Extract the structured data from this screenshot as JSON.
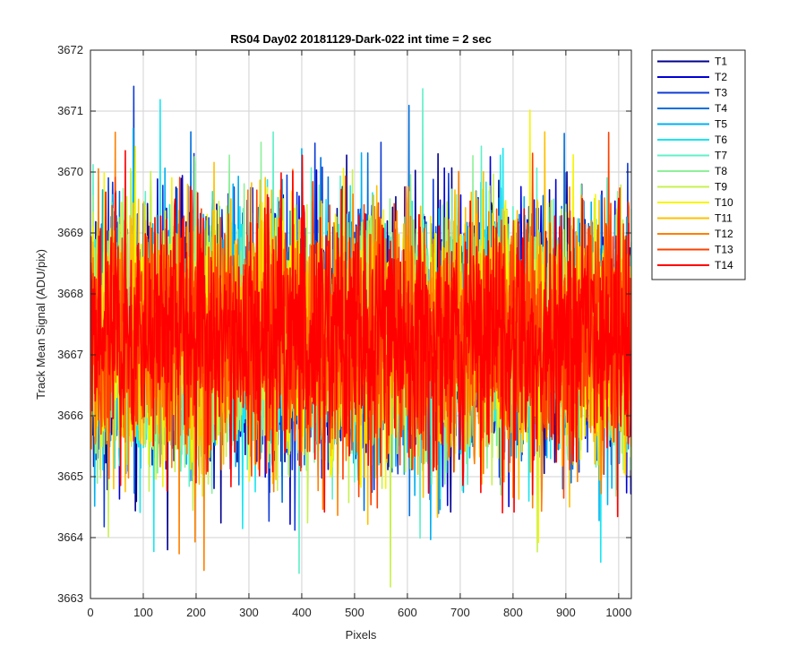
{
  "chart_data": {
    "type": "line",
    "title": "RS04 Day02 20181129-Dark-022 int time = 2 sec",
    "xlabel": "Pixels",
    "ylabel": "Track Mean Signal (ADU/pix)",
    "xlim": [
      0,
      1024
    ],
    "ylim": [
      3663,
      3672
    ],
    "xticks": [
      0,
      100,
      200,
      300,
      400,
      500,
      600,
      700,
      800,
      900,
      1000
    ],
    "yticks": [
      3663,
      3664,
      3665,
      3666,
      3667,
      3668,
      3669,
      3670,
      3671,
      3672
    ],
    "grid": true,
    "legend_position": "outside-top-right",
    "n_pixels": 1024,
    "series_mean": 3667.3,
    "series_noise_std": 1.0,
    "series": [
      {
        "name": "T1",
        "color": "#00008f"
      },
      {
        "name": "T2",
        "color": "#0000d6"
      },
      {
        "name": "T3",
        "color": "#0f3bd6"
      },
      {
        "name": "T4",
        "color": "#0070df"
      },
      {
        "name": "T5",
        "color": "#00b0f0"
      },
      {
        "name": "T6",
        "color": "#19e6f0"
      },
      {
        "name": "T7",
        "color": "#5ff0c8"
      },
      {
        "name": "T8",
        "color": "#8ff09a"
      },
      {
        "name": "T9",
        "color": "#c8f050"
      },
      {
        "name": "T10",
        "color": "#f5f500"
      },
      {
        "name": "T11",
        "color": "#ffc000"
      },
      {
        "name": "T12",
        "color": "#ff8000"
      },
      {
        "name": "T13",
        "color": "#ff4000"
      },
      {
        "name": "T14",
        "color": "#ff0000"
      }
    ]
  }
}
